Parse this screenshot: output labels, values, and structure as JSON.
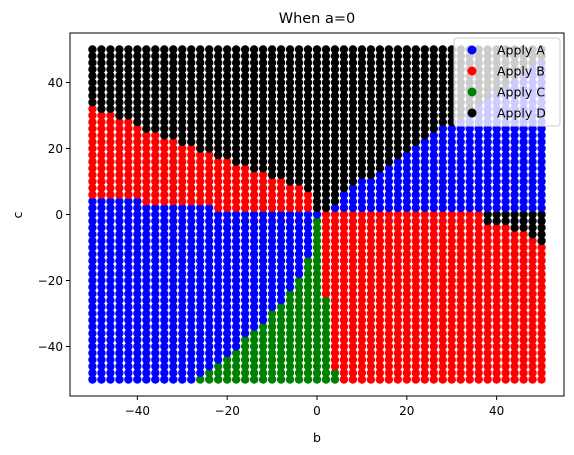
{
  "chart_data": {
    "type": "scatter",
    "title": "When a=0",
    "xlabel": "b",
    "ylabel": "c",
    "xlim": [
      -55,
      55
    ],
    "ylim": [
      -55,
      55
    ],
    "x_ticks": [
      -40,
      -20,
      0,
      20,
      40
    ],
    "y_ticks": [
      -40,
      -20,
      0,
      20,
      40
    ],
    "x_tick_labels": [
      "−40",
      "−20",
      "0",
      "20",
      "40"
    ],
    "y_tick_labels": [
      "−40",
      "−20",
      "0",
      "20",
      "40"
    ],
    "grid": false,
    "legend_position": "top-right",
    "point_spacing": 2,
    "b_range": [
      -50,
      50
    ],
    "c_range": [
      -50,
      50
    ],
    "series": [
      {
        "name": "Apply A",
        "color": "#0000ff"
      },
      {
        "name": "Apply B",
        "color": "#ff0000"
      },
      {
        "name": "Apply C",
        "color": "#008000"
      },
      {
        "name": "Apply D",
        "color": "#000000"
      }
    ],
    "boundaries": {
      "black_red_left": [
        [
          -50,
          34
        ],
        [
          -48,
          32
        ],
        [
          -46,
          31
        ],
        [
          -44,
          30
        ],
        [
          -42,
          29
        ],
        [
          -40,
          27
        ],
        [
          -38,
          26
        ],
        [
          -36,
          25
        ],
        [
          -34,
          24
        ],
        [
          -32,
          23
        ],
        [
          -30,
          22
        ],
        [
          -28,
          21
        ],
        [
          -26,
          20
        ],
        [
          -24,
          19
        ],
        [
          -22,
          18
        ],
        [
          -20,
          17
        ],
        [
          -18,
          16
        ],
        [
          -16,
          15
        ],
        [
          -14,
          14
        ],
        [
          -12,
          13
        ],
        [
          -10,
          12
        ],
        [
          -8,
          11
        ],
        [
          -6,
          10
        ],
        [
          -4,
          9
        ],
        [
          -2,
          7
        ]
      ],
      "black_blue_right": [
        [
          2,
          2
        ],
        [
          4,
          4
        ],
        [
          6,
          8
        ],
        [
          8,
          10
        ],
        [
          10,
          11
        ],
        [
          12,
          12
        ],
        [
          14,
          14
        ],
        [
          16,
          16
        ],
        [
          18,
          17
        ],
        [
          20,
          19
        ],
        [
          22,
          21
        ],
        [
          24,
          23
        ],
        [
          26,
          25
        ],
        [
          28,
          27
        ],
        [
          30,
          28
        ],
        [
          32,
          30
        ],
        [
          34,
          32
        ],
        [
          36,
          34
        ],
        [
          38,
          36
        ],
        [
          40,
          38
        ],
        [
          42,
          40
        ],
        [
          44,
          42
        ],
        [
          46,
          44
        ],
        [
          48,
          46
        ],
        [
          50,
          48
        ]
      ],
      "red_blue_left": [
        [
          -50,
          6
        ],
        [
          -48,
          6
        ],
        [
          -46,
          5
        ],
        [
          -44,
          5
        ],
        [
          -42,
          5
        ],
        [
          -40,
          5
        ],
        [
          -38,
          4
        ],
        [
          -36,
          4
        ],
        [
          -34,
          4
        ],
        [
          -32,
          4
        ],
        [
          -30,
          3
        ],
        [
          -28,
          3
        ],
        [
          -26,
          3
        ],
        [
          -24,
          3
        ],
        [
          -22,
          2
        ],
        [
          -20,
          2
        ],
        [
          -18,
          2
        ],
        [
          -16,
          2
        ],
        [
          -14,
          2
        ],
        [
          -12,
          2
        ],
        [
          -10,
          2
        ],
        [
          -8,
          2
        ],
        [
          -6,
          1
        ],
        [
          -4,
          1
        ],
        [
          -2,
          1
        ]
      ],
      "blue_green": [
        [
          -28,
          -50
        ],
        [
          -26,
          -48
        ],
        [
          -24,
          -46
        ],
        [
          -22,
          -44
        ],
        [
          -20,
          -42
        ],
        [
          -18,
          -40
        ],
        [
          -16,
          -37
        ],
        [
          -14,
          -35
        ],
        [
          -12,
          -32
        ],
        [
          -10,
          -29
        ],
        [
          -8,
          -26
        ],
        [
          -6,
          -22
        ],
        [
          -4,
          -18
        ],
        [
          -2,
          -12
        ],
        [
          0,
          -4
        ]
      ],
      "green_red": [
        [
          0,
          -1
        ],
        [
          2,
          -24
        ],
        [
          4,
          -46
        ]
      ],
      "blue_black_lower": [
        [
          0,
          1
        ],
        [
          10,
          1
        ],
        [
          20,
          1
        ],
        [
          30,
          1
        ],
        [
          40,
          1
        ],
        [
          50,
          1
        ]
      ],
      "blue_red_lower": [
        [
          0,
          0
        ],
        [
          10,
          -1
        ],
        [
          20,
          -2
        ],
        [
          30,
          -3
        ],
        [
          40,
          -4
        ],
        [
          50,
          -6
        ]
      ],
      "black_red_lower": [
        [
          40,
          -2
        ],
        [
          42,
          -3
        ],
        [
          44,
          -4
        ],
        [
          46,
          -5
        ],
        [
          48,
          -6
        ],
        [
          50,
          -8
        ]
      ]
    }
  }
}
